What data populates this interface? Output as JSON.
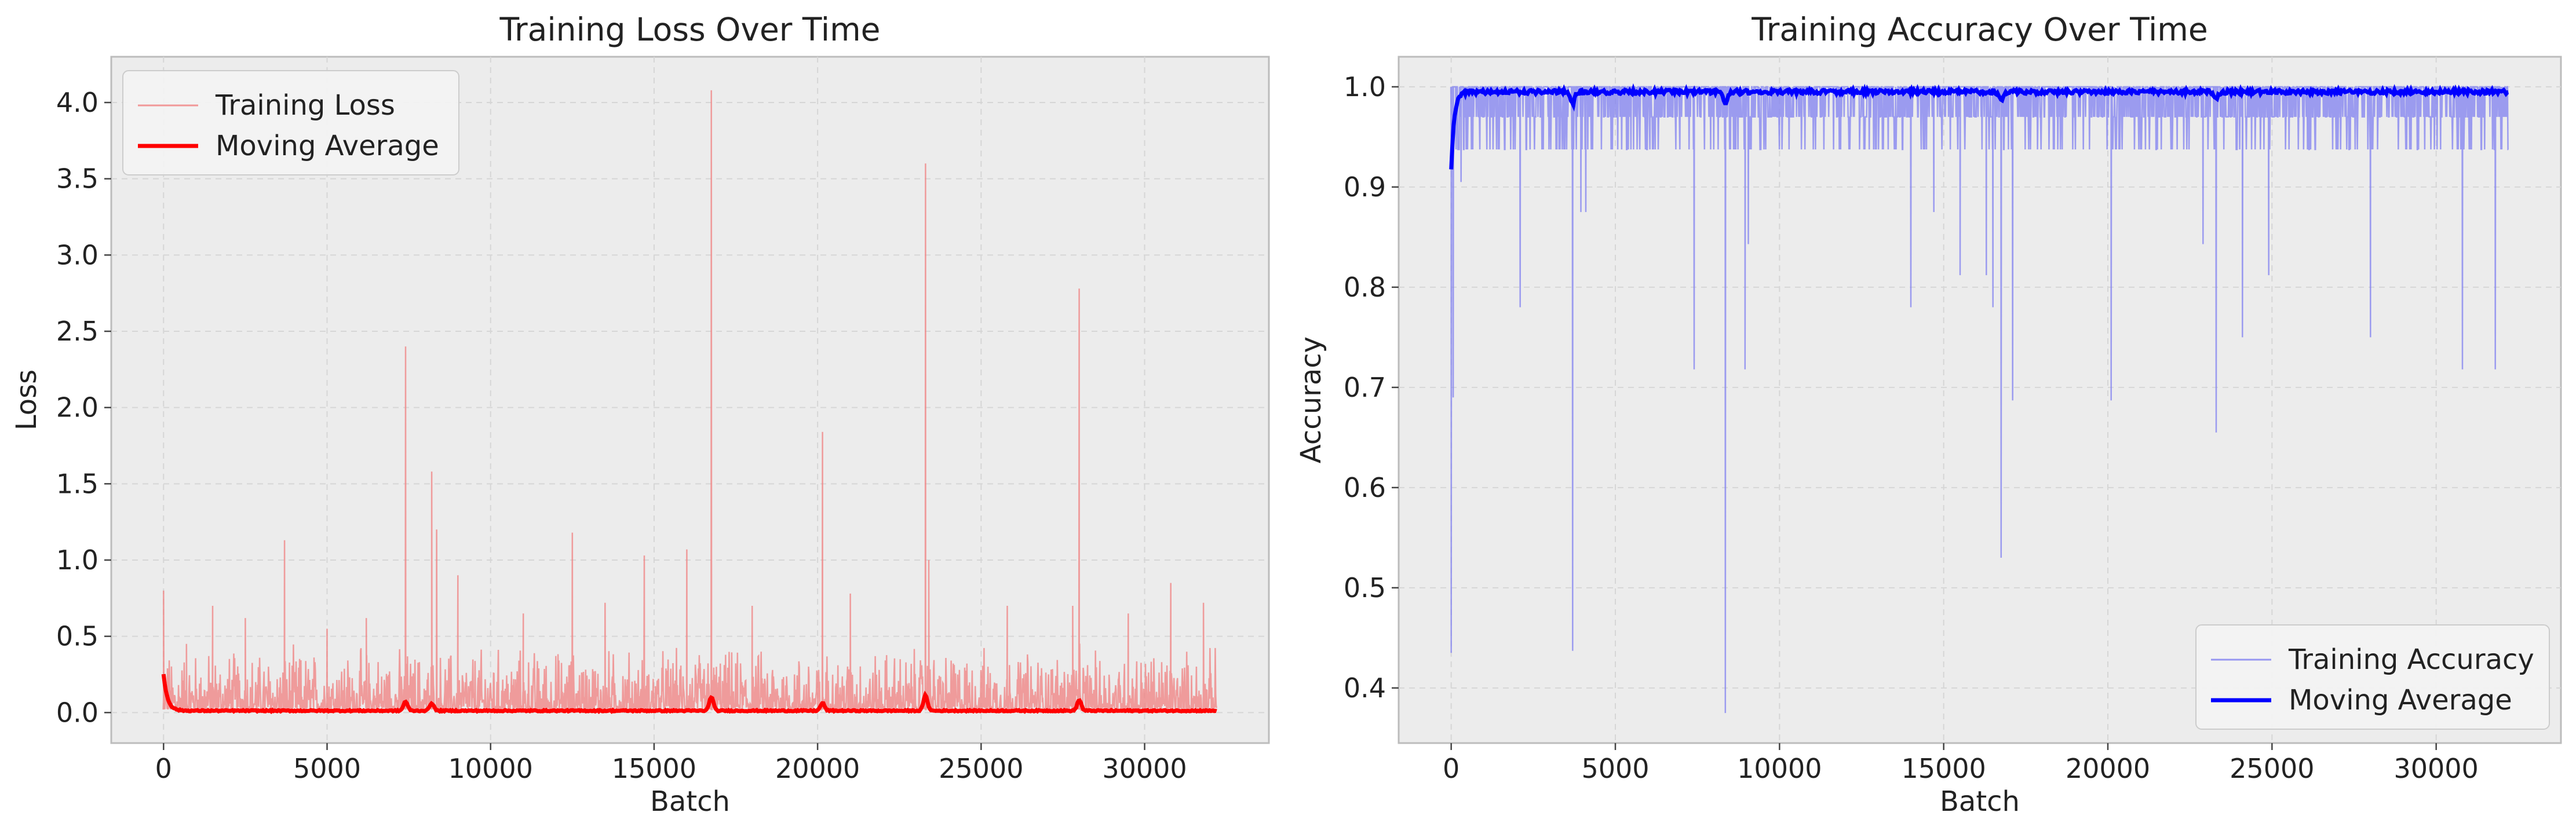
{
  "chart_data": [
    {
      "type": "line",
      "title": "Training Loss Over Time",
      "xlabel": "Batch",
      "ylabel": "Loss",
      "xlim": [
        -1600,
        33800
      ],
      "ylim": [
        -0.2,
        4.3
      ],
      "xticks": [
        0,
        5000,
        10000,
        15000,
        20000,
        25000,
        30000
      ],
      "yticks": [
        0.0,
        0.5,
        1.0,
        1.5,
        2.0,
        2.5,
        3.0,
        3.5,
        4.0
      ],
      "ytick_labels": [
        "0.0",
        "0.5",
        "1.0",
        "1.5",
        "2.0",
        "2.5",
        "3.0",
        "3.5",
        "4.0"
      ],
      "grid": true,
      "legend_position": "top-left",
      "colors": {
        "raw": "#f08080",
        "avg": "#ff0000"
      },
      "series": [
        {
          "name": "Training Loss",
          "style": "raw",
          "x_range": [
            0,
            32200
          ],
          "baseline": 0.02,
          "noise_max": 0.45,
          "spikes": [
            [
              0,
              0.8
            ],
            [
              700,
              0.45
            ],
            [
              1500,
              0.7
            ],
            [
              2500,
              0.62
            ],
            [
              3700,
              1.13
            ],
            [
              5000,
              0.55
            ],
            [
              6200,
              0.62
            ],
            [
              7400,
              2.4
            ],
            [
              8200,
              1.58
            ],
            [
              8350,
              1.2
            ],
            [
              9000,
              0.9
            ],
            [
              11000,
              0.65
            ],
            [
              12500,
              1.18
            ],
            [
              13500,
              0.72
            ],
            [
              14700,
              1.03
            ],
            [
              16000,
              1.07
            ],
            [
              16750,
              4.08
            ],
            [
              18000,
              0.7
            ],
            [
              20150,
              1.84
            ],
            [
              21000,
              0.78
            ],
            [
              23300,
              3.6
            ],
            [
              23400,
              1.0
            ],
            [
              25800,
              0.7
            ],
            [
              27800,
              0.7
            ],
            [
              28000,
              2.78
            ],
            [
              29500,
              0.65
            ],
            [
              30800,
              0.85
            ],
            [
              31800,
              0.72
            ]
          ]
        },
        {
          "name": "Moving Average",
          "style": "avg",
          "start": 0.25,
          "baseline": 0.012,
          "bumps": [
            [
              0,
              0.25
            ],
            [
              7400,
              0.06
            ],
            [
              8200,
              0.05
            ],
            [
              16750,
              0.09
            ],
            [
              20150,
              0.05
            ],
            [
              23300,
              0.1
            ],
            [
              28000,
              0.07
            ]
          ]
        }
      ]
    },
    {
      "type": "line",
      "title": "Training Accuracy Over Time",
      "xlabel": "Batch",
      "ylabel": "Accuracy",
      "xlim": [
        -1600,
        33800
      ],
      "ylim": [
        0.345,
        1.03
      ],
      "xticks": [
        0,
        5000,
        10000,
        15000,
        20000,
        25000,
        30000
      ],
      "yticks": [
        0.4,
        0.5,
        0.6,
        0.7,
        0.8,
        0.9,
        1.0
      ],
      "ytick_labels": [
        "0.4",
        "0.5",
        "0.6",
        "0.7",
        "0.8",
        "0.9",
        "1.0"
      ],
      "grid": true,
      "legend_position": "lower-right",
      "colors": {
        "raw": "#8080f0",
        "avg": "#0000ff"
      },
      "series": [
        {
          "name": "Training Accuracy",
          "style": "raw",
          "x_range": [
            0,
            32200
          ],
          "top": 1.0,
          "band_low": 0.97,
          "dips": [
            [
              0,
              0.435
            ],
            [
              60,
              0.69
            ],
            [
              300,
              0.905
            ],
            [
              2100,
              0.78
            ],
            [
              3700,
              0.437
            ],
            [
              3950,
              0.875
            ],
            [
              4100,
              0.875
            ],
            [
              7400,
              0.718
            ],
            [
              8350,
              0.375
            ],
            [
              8950,
              0.718
            ],
            [
              9050,
              0.843
            ],
            [
              14000,
              0.78
            ],
            [
              14700,
              0.875
            ],
            [
              15500,
              0.812
            ],
            [
              16300,
              0.812
            ],
            [
              16500,
              0.78
            ],
            [
              16750,
              0.53
            ],
            [
              17100,
              0.687
            ],
            [
              20100,
              0.687
            ],
            [
              22900,
              0.843
            ],
            [
              23300,
              0.655
            ],
            [
              24100,
              0.75
            ],
            [
              24900,
              0.812
            ],
            [
              28000,
              0.75
            ],
            [
              30800,
              0.718
            ],
            [
              31800,
              0.718
            ]
          ]
        },
        {
          "name": "Moving Average",
          "style": "avg",
          "start": 0.92,
          "plateau": 0.997,
          "dips": [
            [
              0,
              0.92
            ],
            [
              3700,
              0.985
            ],
            [
              8350,
              0.985
            ],
            [
              16750,
              0.988
            ],
            [
              23300,
              0.99
            ]
          ]
        }
      ]
    }
  ]
}
